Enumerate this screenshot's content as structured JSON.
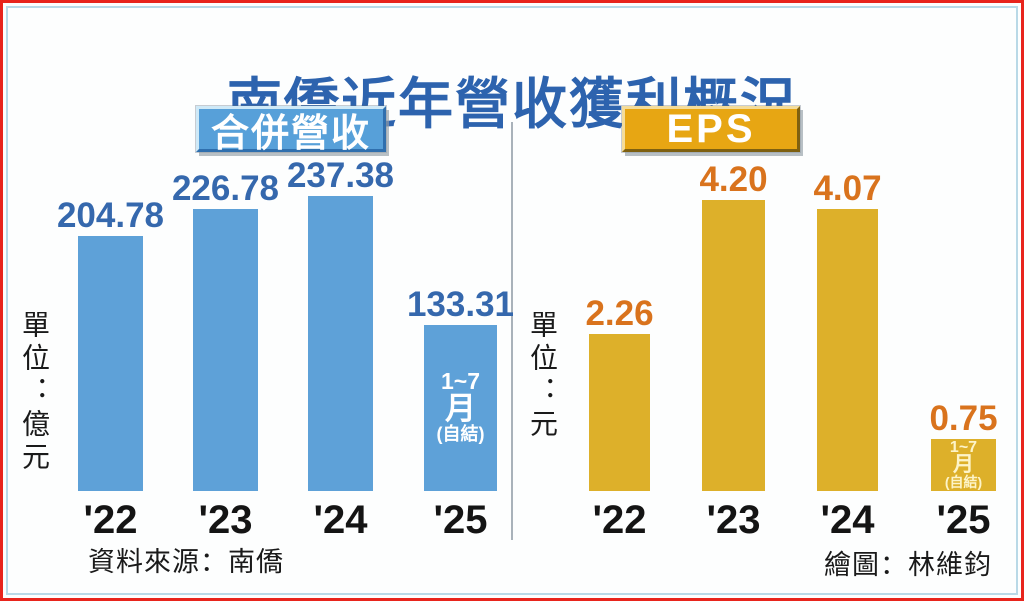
{
  "title": "南僑近年營收獲利概況",
  "colors": {
    "title": "#2d63ae",
    "frame_border": "#e8241c",
    "inner_border": "#b9d9e7",
    "divider": "#a9b2ba",
    "revenue_bar": "#5ea1d8",
    "revenue_value_label": "#3568ad",
    "revenue_badge_fill": "#57a0d9",
    "eps_bar": "#ddb02a",
    "eps_value_label": "#d9731d",
    "eps_badge_fill": "#e7a613",
    "axis_text": "#141414"
  },
  "chart_data": [
    {
      "type": "bar",
      "title": "合併營收",
      "unit_label": "單位：億元",
      "xlabel": "",
      "ylabel": "億元",
      "categories": [
        "'22",
        "'23",
        "'24",
        "'25"
      ],
      "values": [
        204.78,
        226.78,
        237.38,
        133.31
      ],
      "value_labels": [
        "204.78",
        "226.78",
        "237.38",
        "133.31"
      ],
      "last_bar_note_lines": [
        "1~7",
        "月",
        "(自結)"
      ],
      "footnote": "資料來源：南僑",
      "ylim": [
        0,
        250
      ],
      "grid": false,
      "legend_position": "top"
    },
    {
      "type": "bar",
      "title": "EPS",
      "unit_label": "單位：元",
      "xlabel": "",
      "ylabel": "元",
      "categories": [
        "'22",
        "'23",
        "'24",
        "'25"
      ],
      "values": [
        2.26,
        4.2,
        4.07,
        0.75
      ],
      "value_labels": [
        "2.26",
        "4.20",
        "4.07",
        "0.75"
      ],
      "last_bar_note_lines": [
        "1~7",
        "月",
        "(自結)"
      ],
      "footnote": "繪圖：林維鈞",
      "ylim": [
        0,
        4.5
      ],
      "grid": false,
      "legend_position": "top"
    }
  ]
}
